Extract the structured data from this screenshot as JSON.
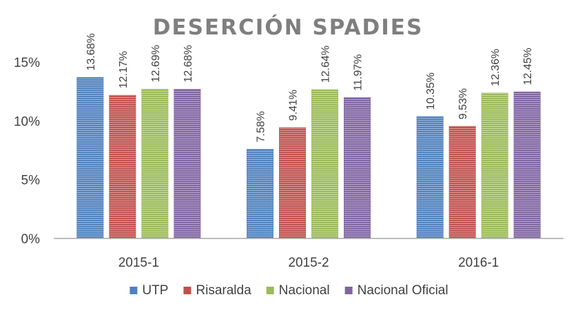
{
  "chart_data": {
    "type": "bar",
    "title": "DESERCIÓN SPADIES",
    "categories": [
      "2015-1",
      "2015-2",
      "2016-1"
    ],
    "series": [
      {
        "name": "UTP",
        "values": [
          13.68,
          7.58,
          10.35
        ],
        "labels": [
          "13.68%",
          "7.58%",
          "10.35%"
        ],
        "color": "#4f81bd"
      },
      {
        "name": "Risaralda",
        "values": [
          12.17,
          9.41,
          9.53
        ],
        "labels": [
          "12.17%",
          "9.41%",
          "9.53%"
        ],
        "color": "#c0504d"
      },
      {
        "name": "Nacional",
        "values": [
          12.69,
          12.64,
          12.36
        ],
        "labels": [
          "12.69%",
          "12.64%",
          "12.36%"
        ],
        "color": "#9bbb59"
      },
      {
        "name": "Nacional Oficial",
        "values": [
          12.68,
          11.97,
          12.45
        ],
        "labels": [
          "12.68%",
          "11.97%",
          "12.45%"
        ],
        "color": "#8064a2"
      }
    ],
    "y_ticks": [
      {
        "value": 0,
        "label": "0%"
      },
      {
        "value": 5,
        "label": "5%"
      },
      {
        "value": 10,
        "label": "10%"
      },
      {
        "value": 15,
        "label": "15%"
      }
    ],
    "ylim": [
      0,
      15
    ],
    "grid": false,
    "legend_position": "bottom"
  }
}
